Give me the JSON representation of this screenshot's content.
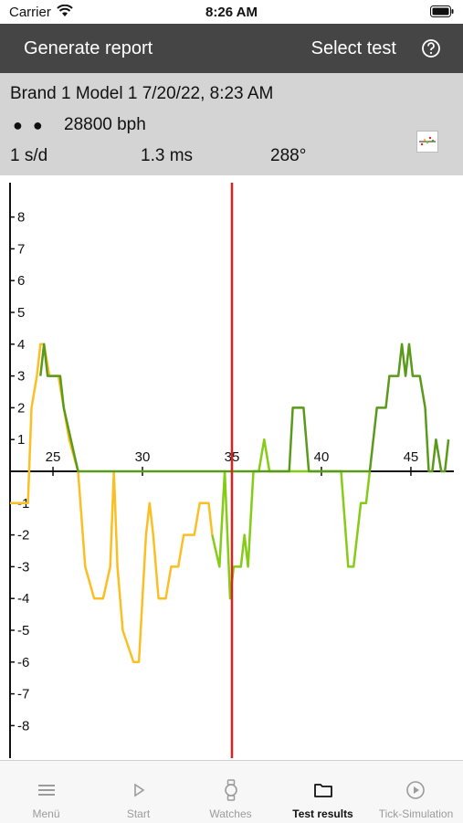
{
  "status_bar": {
    "carrier": "Carrier",
    "time": "8:26 AM"
  },
  "nav": {
    "generate_label": "Generate report",
    "select_label": "Select test",
    "help_icon": "question-circle-icon"
  },
  "info": {
    "title": "Brand 1 Model 1 7/20/22, 8:23 AM",
    "dots": "● ●",
    "bph": "28800 bph",
    "rate": "1 s/d",
    "beat_error": "1.3 ms",
    "amplitude": "288°"
  },
  "tabs": [
    {
      "label": "Menü",
      "icon": "menu-icon",
      "active": false
    },
    {
      "label": "Start",
      "icon": "play-icon",
      "active": false
    },
    {
      "label": "Watches",
      "icon": "watch-icon",
      "active": false
    },
    {
      "label": "Test results",
      "icon": "folder-icon",
      "active": true
    },
    {
      "label": "Tick-Simulation",
      "icon": "play-circle-icon",
      "active": false
    }
  ],
  "chart_data": {
    "type": "line",
    "x_ticks": [
      25,
      30,
      35,
      40,
      45
    ],
    "y_ticks": [
      8,
      7,
      6,
      5,
      4,
      3,
      2,
      1,
      -1,
      -2,
      -3,
      -4,
      -5,
      -6,
      -7,
      -8
    ],
    "xlim": [
      22.6,
      47.3
    ],
    "ylim": [
      -9,
      9
    ],
    "marker_x": 35,
    "colors": {
      "line_yellow": "#fbbf24",
      "line_green_light": "#84cc16",
      "line_green": "#5a9a1a",
      "marker": "#e02020"
    },
    "series": [
      {
        "color": "yellow",
        "points": [
          [
            22.6,
            -1
          ],
          [
            22.8,
            -1
          ],
          [
            23.6,
            -1
          ],
          [
            23.8,
            2
          ],
          [
            24.1,
            3
          ],
          [
            24.3,
            4
          ],
          [
            24.5,
            4
          ],
          [
            24.8,
            3
          ],
          [
            25.3,
            3
          ]
        ]
      },
      {
        "color": "yellow",
        "points": [
          [
            25.3,
            3
          ],
          [
            25.9,
            1
          ],
          [
            26.4,
            0
          ],
          [
            26.8,
            -3
          ],
          [
            27.3,
            -4
          ],
          [
            27.8,
            -4
          ],
          [
            28.2,
            -3
          ],
          [
            28.4,
            0
          ],
          [
            28.6,
            -3
          ],
          [
            28.9,
            -5
          ],
          [
            29.2,
            -5.5
          ],
          [
            29.5,
            -6
          ],
          [
            29.8,
            -6
          ],
          [
            30.2,
            -2
          ],
          [
            30.4,
            -1
          ],
          [
            30.6,
            -2
          ],
          [
            30.9,
            -4
          ],
          [
            31.3,
            -4
          ],
          [
            31.6,
            -3
          ],
          [
            32,
            -3
          ],
          [
            32.3,
            -2
          ],
          [
            32.9,
            -2
          ],
          [
            33.2,
            -1
          ],
          [
            33.7,
            -1
          ],
          [
            33.9,
            -2
          ]
        ]
      },
      {
        "color": "green-light",
        "points": [
          [
            33.9,
            -2
          ],
          [
            34.3,
            -3
          ],
          [
            34.6,
            0
          ],
          [
            34.9,
            -4
          ],
          [
            35.1,
            -3
          ],
          [
            35.5,
            -3
          ],
          [
            35.7,
            -2
          ],
          [
            35.9,
            -3
          ],
          [
            36.2,
            0
          ],
          [
            36.5,
            0
          ],
          [
            36.8,
            1
          ],
          [
            37.1,
            0
          ],
          [
            38,
            0
          ],
          [
            39,
            0
          ],
          [
            40.3,
            0
          ],
          [
            41.1,
            0
          ],
          [
            41.5,
            -3
          ],
          [
            41.8,
            -3
          ],
          [
            42.2,
            -1
          ],
          [
            42.5,
            -1
          ],
          [
            42.7,
            0
          ]
        ]
      },
      {
        "color": "green",
        "points": [
          [
            24.3,
            3
          ],
          [
            24.5,
            4
          ],
          [
            24.7,
            3
          ],
          [
            25.4,
            3
          ],
          [
            25.6,
            2
          ],
          [
            26,
            1
          ],
          [
            26.4,
            0
          ],
          [
            33.7,
            0
          ],
          [
            36,
            0
          ],
          [
            38.2,
            0
          ],
          [
            38.4,
            2
          ],
          [
            39,
            2
          ],
          [
            39.3,
            0
          ],
          [
            40,
            0
          ],
          [
            42.7,
            0
          ],
          [
            43.1,
            2
          ],
          [
            43.6,
            2
          ],
          [
            43.8,
            3
          ],
          [
            44.3,
            3
          ],
          [
            44.5,
            4
          ],
          [
            44.7,
            3
          ],
          [
            44.9,
            4
          ],
          [
            45.1,
            3
          ],
          [
            45.5,
            3
          ],
          [
            45.8,
            2
          ],
          [
            46,
            0
          ],
          [
            46.2,
            0
          ],
          [
            46.4,
            1
          ],
          [
            46.7,
            0
          ],
          [
            46.9,
            0
          ],
          [
            47.1,
            1
          ]
        ]
      }
    ]
  }
}
